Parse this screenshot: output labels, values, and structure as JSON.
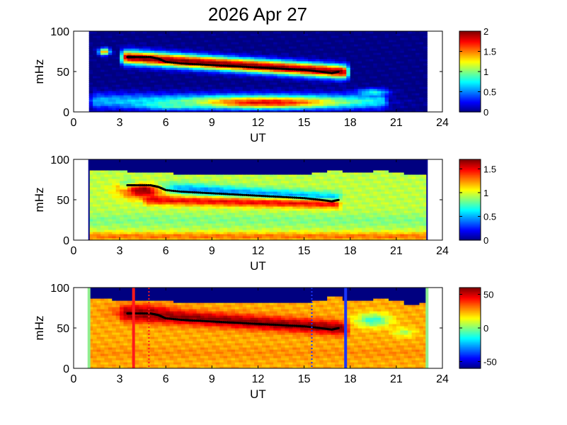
{
  "title": "2026 Apr 27",
  "colors": {
    "background": "#ffffff",
    "axis": "#000000",
    "fill_outside": "#ffffff",
    "ridge_marker": "#000000",
    "vline_red": "#ff1a1a",
    "vline_blue": "#1a36ff",
    "green_edge": "#90ee90",
    "jet_colormap": "jet"
  },
  "chart_data": [
    {
      "type": "heatmap",
      "panel": "top",
      "xlabel": "UT",
      "ylabel": "mHz",
      "xlim": [
        0,
        24
      ],
      "ylim": [
        0,
        100
      ],
      "xticks": [
        0,
        3,
        6,
        9,
        12,
        15,
        18,
        21,
        24
      ],
      "yticks": [
        0,
        50,
        100
      ],
      "data_range_x": [
        1,
        23
      ],
      "colorbar": {
        "min": 0,
        "max": 2,
        "ticks": [
          "0",
          "0.5",
          "1",
          "1.5",
          "2"
        ]
      },
      "background_level": 0,
      "features": [
        {
          "kind": "band",
          "x": [
            3.5,
            17.5
          ],
          "y_center": [
            68,
            50
          ],
          "width": 12,
          "level": 2
        },
        {
          "kind": "band",
          "x": [
            1.5,
            20.0
          ],
          "y_center": [
            14,
            14
          ],
          "width": 14,
          "level": 0.6
        },
        {
          "kind": "blob",
          "x": 12.5,
          "y": 12,
          "sx": 3.5,
          "sy": 5,
          "level": 1.8
        },
        {
          "kind": "blob",
          "x": 6.5,
          "y": 8,
          "sx": 1.5,
          "sy": 3,
          "level": 0.9
        },
        {
          "kind": "blob",
          "x": 19.5,
          "y": 25,
          "sx": 0.7,
          "sy": 3,
          "level": 0.8
        },
        {
          "kind": "blob",
          "x": 2.0,
          "y": 75,
          "sx": 0.25,
          "sy": 3,
          "level": 1.6
        }
      ],
      "ridge": {
        "x": [
          3.5,
          4.0,
          5.0,
          5.5,
          6.0,
          7.0,
          8.0,
          9.0,
          10.0,
          11.0,
          12.0,
          13.0,
          14.0,
          15.0,
          16.0,
          16.8,
          17.3
        ],
        "y": [
          68,
          68,
          68,
          66,
          62,
          60,
          59,
          58,
          57,
          56,
          55,
          54,
          53,
          52,
          50,
          48,
          50
        ]
      }
    },
    {
      "type": "heatmap",
      "panel": "middle",
      "xlabel": "UT",
      "ylabel": "mHz",
      "xlim": [
        0,
        24
      ],
      "ylim": [
        0,
        100
      ],
      "xticks": [
        0,
        3,
        6,
        9,
        12,
        15,
        18,
        21,
        24
      ],
      "yticks": [
        0,
        50,
        100
      ],
      "data_range_x": [
        1,
        23
      ],
      "colorbar": {
        "min": 0,
        "max": 1.7,
        "ticks": [
          "0",
          "0.5",
          "1",
          "1.5"
        ]
      },
      "background_level": 0.95,
      "top_cutoff_y": [
        88,
        88,
        86,
        85,
        84,
        83,
        82,
        82,
        82,
        82,
        82,
        82,
        82,
        82,
        82,
        84,
        88,
        84,
        85,
        86,
        84,
        82,
        82
      ],
      "features": [
        {
          "kind": "band",
          "x": [
            3.5,
            17.0
          ],
          "y_center": [
            68,
            52
          ],
          "width": 10,
          "level": 0.45
        },
        {
          "kind": "band",
          "x": [
            5.0,
            17.0
          ],
          "y_center": [
            50,
            45
          ],
          "width": 8,
          "level": 1.5
        },
        {
          "kind": "blob",
          "x": 4.5,
          "y": 62,
          "sx": 1.0,
          "sy": 7,
          "level": 1.7
        },
        {
          "kind": "band",
          "x": [
            1.0,
            23.0
          ],
          "y_center": [
            5,
            5
          ],
          "width": 8,
          "level": 1.3
        },
        {
          "kind": "band",
          "x": [
            1.0,
            23.0
          ],
          "y_center": [
            25,
            25
          ],
          "width": 12,
          "level": 0.85
        }
      ],
      "ridge": {
        "x": [
          3.5,
          4.0,
          5.0,
          5.5,
          6.0,
          7.0,
          8.0,
          9.0,
          10.0,
          11.0,
          12.0,
          13.0,
          14.0,
          15.0,
          16.0,
          16.8,
          17.3
        ],
        "y": [
          68,
          68,
          68,
          66,
          62,
          60,
          59,
          58,
          57,
          56,
          55,
          54,
          53,
          52,
          50,
          48,
          50
        ]
      }
    },
    {
      "type": "heatmap",
      "panel": "bottom",
      "xlabel": "UT",
      "ylabel": "mHz",
      "xlim": [
        0,
        24
      ],
      "ylim": [
        0,
        100
      ],
      "xticks": [
        0,
        3,
        6,
        9,
        12,
        15,
        18,
        21,
        24
      ],
      "yticks": [
        0,
        50,
        100
      ],
      "data_range_x": [
        1,
        23
      ],
      "colorbar": {
        "min": -60,
        "max": 60,
        "ticks": [
          "50",
          "0",
          "-50"
        ]
      },
      "background_level": 25,
      "top_cutoff_y": [
        88,
        86,
        85,
        84,
        84,
        83,
        82,
        82,
        82,
        82,
        82,
        82,
        82,
        82,
        82,
        84,
        90,
        84,
        85,
        86,
        84,
        80,
        82
      ],
      "features": [
        {
          "kind": "band",
          "x": [
            3.5,
            17.5
          ],
          "y_center": [
            68,
            50
          ],
          "width": 12,
          "level": 60
        },
        {
          "kind": "blob",
          "x": 4.5,
          "y": 70,
          "sx": 1.2,
          "sy": 6,
          "level": 55
        },
        {
          "kind": "band",
          "x": [
            1.0,
            23.0
          ],
          "y_center": [
            20,
            20
          ],
          "width": 10,
          "level": 28
        },
        {
          "kind": "blob",
          "x": 19.5,
          "y": 60,
          "sx": 0.8,
          "sy": 6,
          "level": -10
        },
        {
          "kind": "blob",
          "x": 21.5,
          "y": 45,
          "sx": 0.5,
          "sy": 4,
          "level": 5
        }
      ],
      "ridge": {
        "x": [
          3.5,
          4.0,
          5.0,
          5.5,
          6.0,
          7.0,
          8.0,
          9.0,
          10.0,
          11.0,
          12.0,
          13.0,
          14.0,
          15.0,
          16.0,
          16.8,
          17.3
        ],
        "y": [
          68,
          68,
          68,
          66,
          62,
          60,
          59,
          58,
          57,
          56,
          55,
          54,
          53,
          52,
          50,
          48,
          50
        ]
      },
      "vertical_lines": [
        {
          "x": 3.9,
          "style": "solid",
          "color": "red"
        },
        {
          "x": 4.9,
          "style": "dotted",
          "color": "red"
        },
        {
          "x": 15.5,
          "style": "dotted",
          "color": "blue"
        },
        {
          "x": 17.7,
          "style": "solid",
          "color": "blue"
        }
      ]
    }
  ]
}
